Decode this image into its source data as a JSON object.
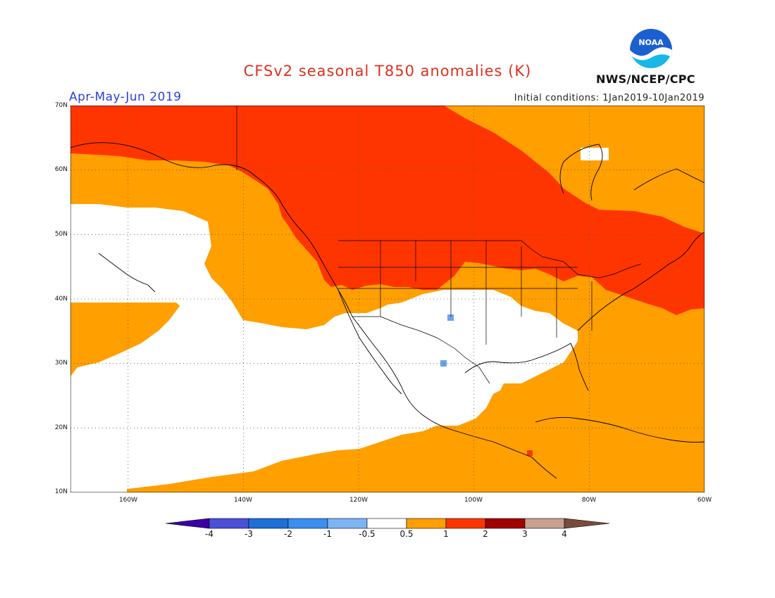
{
  "title": "CFSv2 seasonal T850 anomalies (K)",
  "period": "Apr-May-Jun 2019",
  "initial_conditions": "Initial conditions: 1Jan2019-10Jan2019",
  "org": "NWS/NCEP/CPC",
  "logo_text": "NOAA",
  "map": {
    "lat_ticks": [
      "70N",
      "60N",
      "50N",
      "40N",
      "30N",
      "20N",
      "10N"
    ],
    "lon_ticks": [
      "160W",
      "140W",
      "120W",
      "100W",
      "80W",
      "60W"
    ],
    "lon_range": [
      -170,
      -60
    ],
    "lat_range": [
      10,
      70
    ],
    "grid": "dotted",
    "colors": {
      "near_zero": "#ffffff",
      "0.5_to_1": "#ff9f00",
      "1_to_2": "#ff3500",
      "negative_small": "#6fa0ea"
    }
  },
  "colorbar": {
    "labels": [
      "-4",
      "-3",
      "-2",
      "-1",
      "-0.5",
      "0.5",
      "1",
      "2",
      "3",
      "4"
    ],
    "colors": [
      "#3a00a8",
      "#4a50d8",
      "#1e6ed8",
      "#3c8ef0",
      "#7db4f4",
      "#ffffff",
      "#ff9f00",
      "#ff3500",
      "#a00000",
      "#c8a090",
      "#7a4a3c"
    ]
  }
}
